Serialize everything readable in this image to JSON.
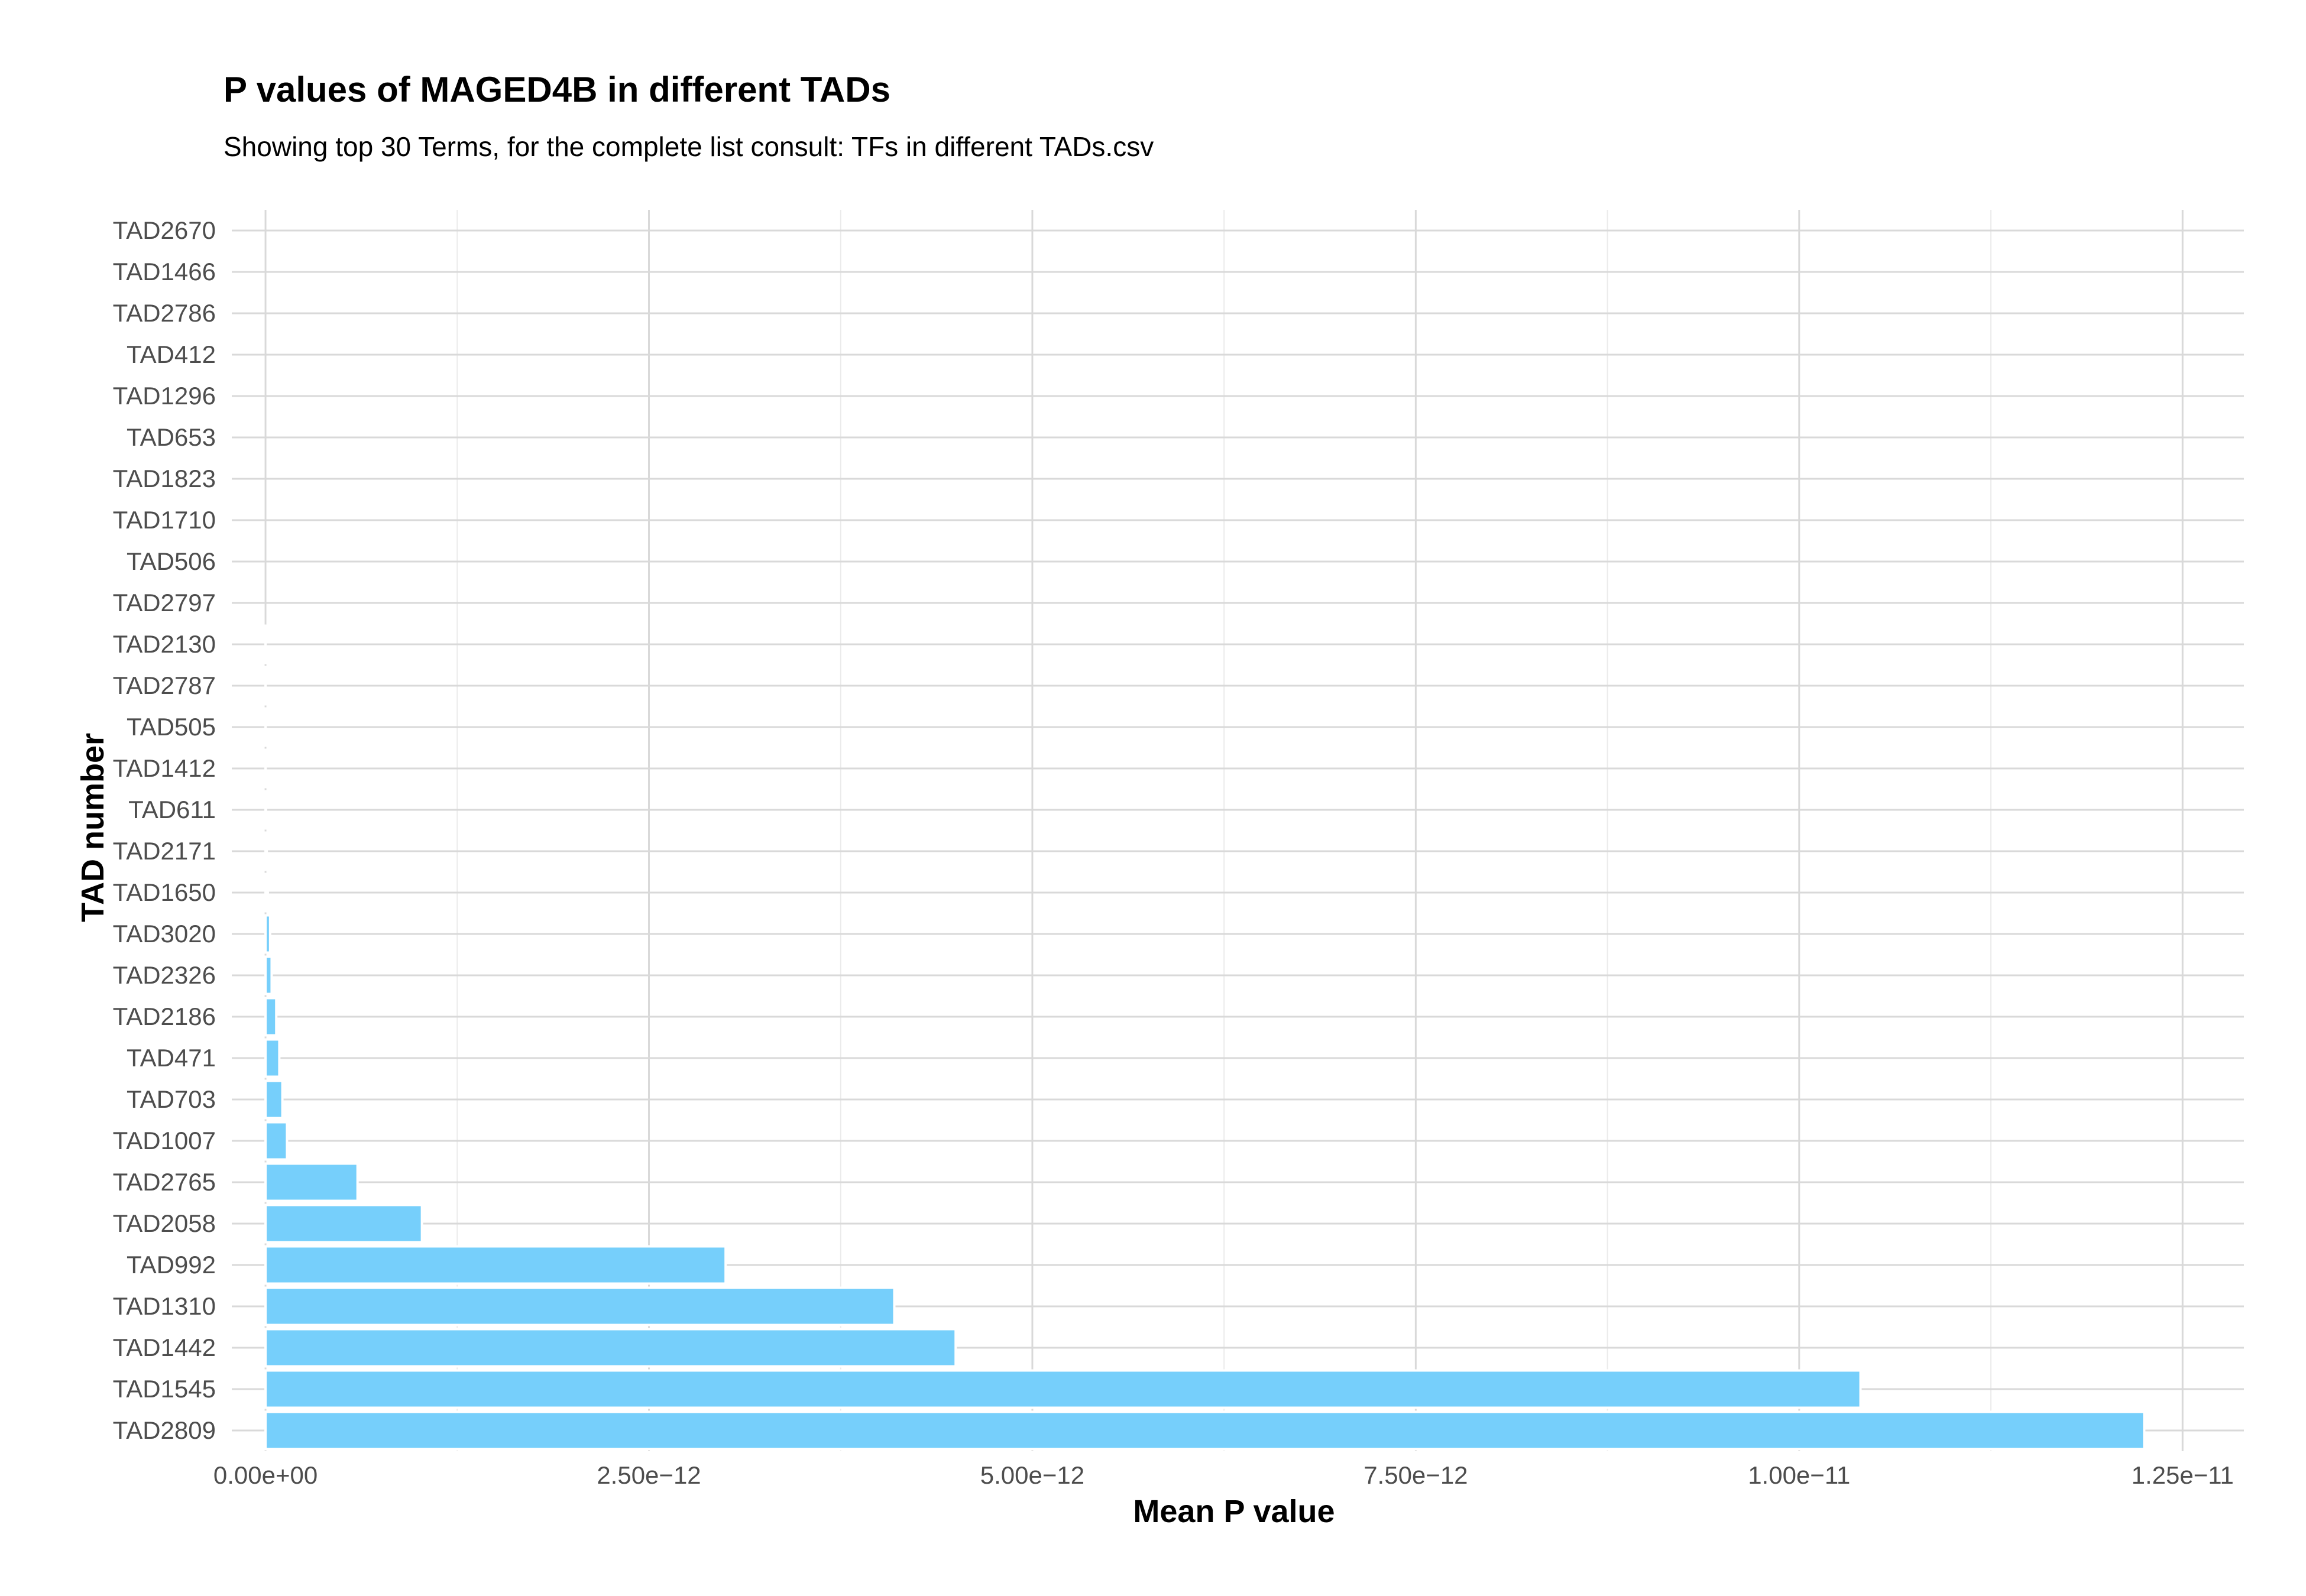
{
  "chart_data": {
    "type": "bar",
    "orientation": "horizontal",
    "title": "P values of MAGED4B in different TADs",
    "subtitle": "Showing top 30 Terms, for the complete list consult: TFs in different TADs.csv",
    "xlabel": "Mean P value",
    "ylabel": "TAD number",
    "xlim": [
      -2.2e-13,
      1.29e-11
    ],
    "x_ticks": [
      0,
      2.5e-12,
      5e-12,
      7.5e-12,
      1e-11,
      1.25e-11
    ],
    "x_tick_labels": [
      "0.00e+00",
      "2.50e−12",
      "5.00e−12",
      "7.50e−12",
      "1.00e−11",
      "1.25e−11"
    ],
    "bar_color": "#76CFFB",
    "grid": true,
    "legend": "none",
    "categories": [
      "TAD2670",
      "TAD1466",
      "TAD2786",
      "TAD412",
      "TAD1296",
      "TAD653",
      "TAD1823",
      "TAD1710",
      "TAD506",
      "TAD2797",
      "TAD2130",
      "TAD2787",
      "TAD505",
      "TAD1412",
      "TAD611",
      "TAD2171",
      "TAD1650",
      "TAD3020",
      "TAD2326",
      "TAD2186",
      "TAD471",
      "TAD703",
      "TAD1007",
      "TAD2765",
      "TAD2058",
      "TAD992",
      "TAD1310",
      "TAD1442",
      "TAD1545",
      "TAD2809"
    ],
    "values": [
      0,
      0,
      0,
      0,
      0,
      0,
      0,
      0,
      0,
      0,
      1e-16,
      2e-16,
      5e-16,
      1e-15,
      3e-15,
      8e-15,
      1.5e-14,
      3e-14,
      4e-14,
      7e-14,
      9e-14,
      1.1e-13,
      1.4e-13,
      6e-13,
      1.02e-12,
      3e-12,
      4.1e-12,
      4.5e-12,
      1.04e-11,
      1.225e-11
    ]
  }
}
